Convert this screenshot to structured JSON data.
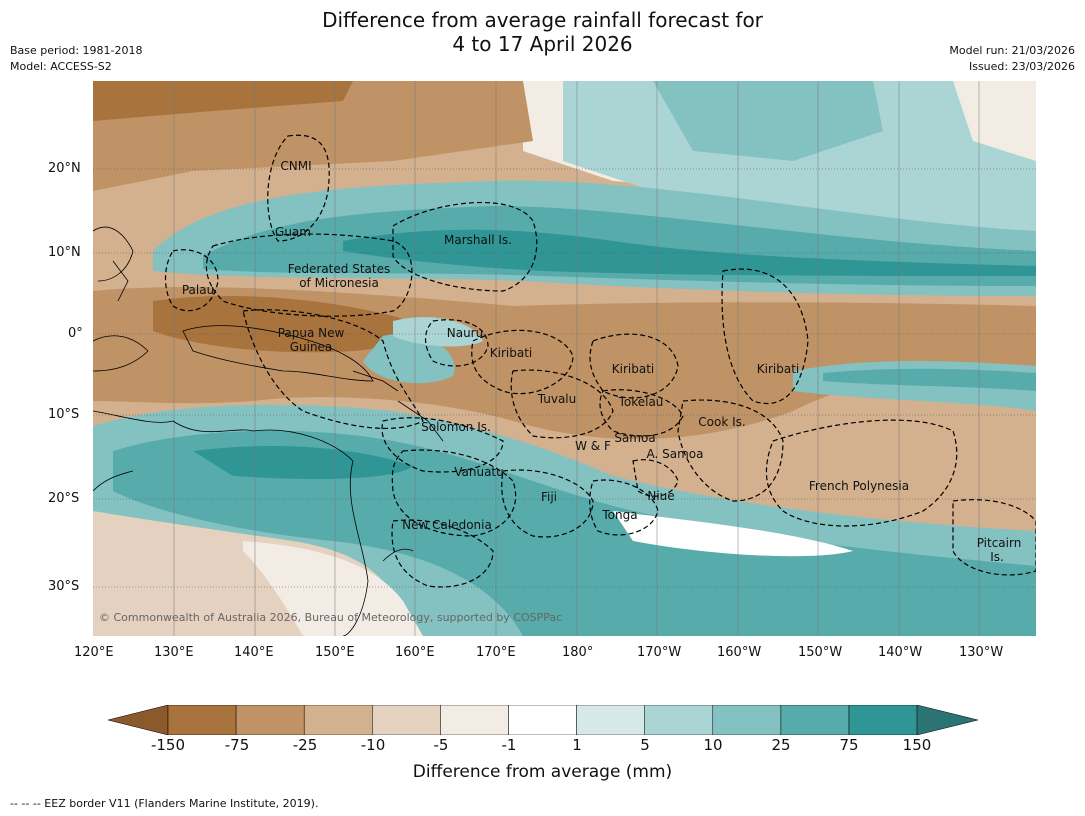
{
  "title": {
    "line1": "Difference from average rainfall forecast for",
    "line2": "4 to 17 April 2026"
  },
  "meta": {
    "base_period": "Base period: 1981-2018",
    "model": "Model: ACCESS-S2",
    "model_run": "Model run: 21/03/2026",
    "issued": "Issued: 23/03/2026"
  },
  "map": {
    "lat_ticks": [
      "20°N",
      "10°N",
      "0°",
      "10°S",
      "20°S",
      "30°S"
    ],
    "lon_ticks": [
      "120°E",
      "130°E",
      "140°E",
      "150°E",
      "160°E",
      "170°E",
      "180°",
      "170°W",
      "160°W",
      "150°W",
      "140°W",
      "130°W"
    ],
    "places": {
      "cnmi": "CNMI",
      "guam": "Guam",
      "marshall": "Marshall Is.",
      "fsm1": "Federated States",
      "fsm2": "of Micronesia",
      "palau": "Palau",
      "png1": "Papua New",
      "png2": "Guinea",
      "nauru": "Nauru",
      "kiribati_w": "Kiribati",
      "kiribati_c": "Kiribati",
      "kiribati_e": "Kiribati",
      "tuvalu": "Tuvalu",
      "tokelau": "Tokelau",
      "solomon": "Solomon Is.",
      "cook": "Cook Is.",
      "wf": "W & F",
      "samoa": "Samoa",
      "asamoa": "A. Samoa",
      "vanuatu": "Vanuatu",
      "fiji": "Fiji",
      "niue": "Niue",
      "french_polynesia": "French Polynesia",
      "tonga": "Tonga",
      "new_caledonia": "New Caledonia",
      "pitcairn1": "Pitcairn",
      "pitcairn2": "Is."
    },
    "copyright": "© Commonwealth of Australia 2026, Bureau of Meteorology, supported by COSPPac"
  },
  "colorbar": {
    "labels": [
      "-150",
      "-75",
      "-25",
      "-10",
      "-5",
      "-1",
      "1",
      "5",
      "10",
      "25",
      "75",
      "150"
    ],
    "colors": [
      "#8b5a2b",
      "#a9733d",
      "#bf9366",
      "#d3b18f",
      "#e4d1bf",
      "#f2ece5",
      "#ffffff",
      "#d6e9e8",
      "#abd5d5",
      "#84c1c1",
      "#57abab",
      "#2f9595",
      "#2b7474"
    ],
    "title": "Difference from average (mm)"
  },
  "footer": "--  --  -- EEZ border V11 (Flanders Marine Institute, 2019)."
}
